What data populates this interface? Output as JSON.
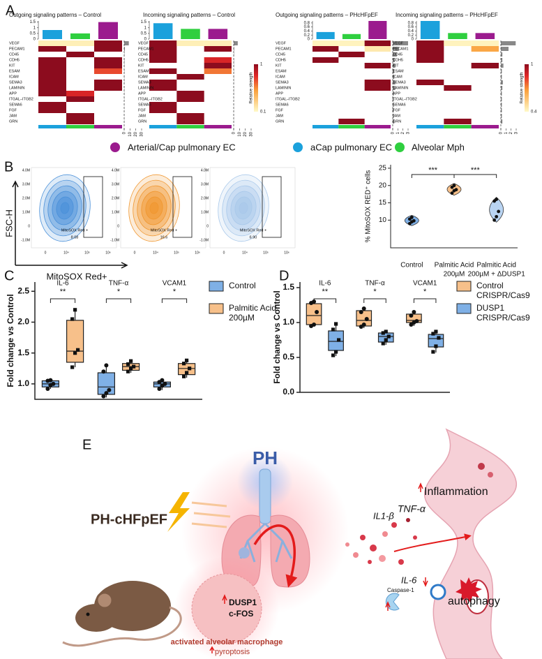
{
  "panel_labels": [
    "A",
    "B",
    "C",
    "D",
    "E"
  ],
  "legend_a": [
    {
      "name": "Arterial/Cap pulmonary EC",
      "color": "#9b1b8e"
    },
    {
      "name": "aCap pulmonary EC",
      "color": "#1ba1dc"
    },
    {
      "name": "Alveolar Mph",
      "color": "#2fcf3f"
    }
  ],
  "chart_data": [
    {
      "type": "heatmap",
      "title": "Outgoing signaling patterns – Control",
      "rows": [
        "VEGF",
        "PECAM1",
        "CD45",
        "CDH5",
        "KIT",
        "ESAM",
        "ICAM",
        "SEMA3",
        "LAMININ",
        "APP",
        "ITGAL–ITGB2",
        "SEMA6",
        "FGF",
        "JAM",
        "GRN"
      ],
      "colors": [
        "#1ba1dc",
        "#2fcf3f",
        "#9b1b8e"
      ],
      "clim": [
        0.1,
        1
      ],
      "matrix": [
        [
          0.15,
          0.15,
          1
        ],
        [
          1,
          null,
          1
        ],
        [
          null,
          1,
          null
        ],
        [
          1,
          null,
          1
        ],
        [
          1,
          null,
          1
        ],
        [
          1,
          null,
          0.7
        ],
        [
          1,
          null,
          null
        ],
        [
          1,
          null,
          1
        ],
        [
          1,
          null,
          1
        ],
        [
          1,
          0.8,
          null
        ],
        [
          null,
          1,
          null
        ],
        [
          1,
          null,
          null
        ],
        [
          1,
          null,
          null
        ],
        [
          null,
          1,
          null
        ],
        [
          null,
          1,
          null
        ]
      ],
      "top_bars": [
        0.8,
        0.5,
        1.5
      ],
      "top_ylim": [
        0,
        1.6
      ],
      "top_yticks": [
        0,
        0.5,
        1,
        1.5
      ],
      "side_bars": [
        8,
        1.2,
        0.5,
        0.6,
        0.5,
        0.5,
        0.3,
        0.4,
        0.4,
        0.3,
        0.3,
        0.2,
        0.2,
        0.2,
        0.2
      ],
      "side_xlim": [
        0,
        30
      ],
      "side_xticks": [
        0,
        10,
        20,
        30
      ]
    },
    {
      "type": "heatmap",
      "title": "Incoming signaling patterns – Control",
      "rows": [
        "VEGF",
        "PECAM1",
        "CD45",
        "CDH5",
        "KIT",
        "ESAM",
        "ICAM",
        "SEMA3",
        "LAMININ",
        "APP",
        "ITGAL–ITGB2",
        "SEMA6",
        "FGF",
        "JAM",
        "GRN"
      ],
      "colors": [
        "#1ba1dc",
        "#2fcf3f",
        "#9b1b8e"
      ],
      "clim": [
        0.1,
        1
      ],
      "matrix": [
        [
          1,
          0.15,
          0.15
        ],
        [
          1,
          null,
          1
        ],
        [
          1,
          null,
          null
        ],
        [
          1,
          null,
          0.8
        ],
        [
          null,
          null,
          1
        ],
        [
          1,
          null,
          0.6
        ],
        [
          null,
          1,
          null
        ],
        [
          1,
          null,
          null
        ],
        [
          1,
          null,
          null
        ],
        [
          null,
          1,
          null
        ],
        [
          null,
          1,
          null
        ],
        [
          1,
          null,
          null
        ],
        [
          1,
          null,
          null
        ],
        [
          null,
          1,
          null
        ],
        [
          null,
          1,
          null
        ]
      ],
      "top_bars": [
        1.4,
        0.9,
        0.9
      ],
      "top_ylim": [
        0,
        1.6
      ],
      "top_yticks": [
        0,
        0.5,
        1,
        1.5
      ],
      "side_bars": [
        7,
        0.8,
        0.6,
        0.5,
        0.4,
        0.4,
        0.3,
        0.3,
        0.3,
        0.3,
        0.2,
        0.2,
        0.2,
        0.2,
        0.2
      ],
      "side_xlim": [
        0,
        30
      ],
      "side_xticks": [
        0,
        10,
        20,
        30
      ],
      "colorbar": {
        "label": "Relative strength",
        "ticks": [
          0.1,
          1
        ]
      }
    },
    {
      "type": "heatmap",
      "title": "Outgoing signaling patterns – PHcHFpEF",
      "rows": [
        "VEGF",
        "PECAM1",
        "CD45",
        "CDH5",
        "KIT",
        "ESAM",
        "ICAM",
        "SEMA3",
        "LAMININ",
        "APP",
        "ITGAL–ITGB2",
        "SEMA6",
        "FGF",
        "JAM",
        "GRN"
      ],
      "colors": [
        "#1ba1dc",
        "#2fcf3f",
        "#9b1b8e"
      ],
      "clim": [
        0.4,
        1
      ],
      "matrix": [
        [
          0.42,
          0.42,
          1
        ],
        [
          1,
          null,
          0.45
        ],
        [
          null,
          1,
          null
        ],
        [
          1,
          null,
          null
        ],
        [
          null,
          null,
          1
        ],
        [
          null,
          null,
          null
        ],
        [
          null,
          null,
          null
        ],
        [
          null,
          null,
          1
        ],
        [
          null,
          null,
          1
        ],
        [
          null,
          null,
          null
        ],
        [
          null,
          null,
          null
        ],
        [
          null,
          null,
          null
        ],
        [
          null,
          null,
          null
        ],
        [
          null,
          null,
          null
        ],
        [
          null,
          1,
          null
        ]
      ],
      "top_bars": [
        0.35,
        0.25,
        0.9
      ],
      "top_ylim": [
        0,
        0.9
      ],
      "top_yticks": [
        0,
        0.2,
        0.4,
        0.6,
        0.8
      ],
      "side_bars": [
        3,
        1.2,
        0.8,
        0.4,
        0.5,
        0.3,
        0.3,
        0.5,
        0.5,
        0.2,
        0.2,
        0.2,
        0.2,
        0.2,
        0.3
      ],
      "side_xlim": [
        0,
        3
      ],
      "side_xticks": [
        0,
        1,
        2,
        3
      ]
    },
    {
      "type": "heatmap",
      "title": "Incoming signaling patterns – PHcHFpEF",
      "rows": [
        "VEGF",
        "PECAM1",
        "CD45",
        "CDH5",
        "KIT",
        "ESAM",
        "ICAM",
        "SEMA3",
        "LAMININ",
        "APP",
        "ITGAL–ITGB2",
        "SEMA6",
        "FGF",
        "JAM",
        "GRN"
      ],
      "colors": [
        "#1ba1dc",
        "#2fcf3f",
        "#9b1b8e"
      ],
      "clim": [
        0.4,
        1
      ],
      "matrix": [
        [
          1,
          0.42,
          0.42
        ],
        [
          1,
          null,
          0.65
        ],
        [
          1,
          null,
          null
        ],
        [
          1,
          null,
          null
        ],
        [
          null,
          null,
          1
        ],
        [
          null,
          null,
          null
        ],
        [
          null,
          null,
          null
        ],
        [
          1,
          null,
          null
        ],
        [
          null,
          1,
          null
        ],
        [
          null,
          null,
          null
        ],
        [
          null,
          null,
          null
        ],
        [
          null,
          null,
          null
        ],
        [
          null,
          null,
          null
        ],
        [
          null,
          null,
          null
        ],
        [
          null,
          1,
          null
        ]
      ],
      "top_bars": [
        0.9,
        0.3,
        0.3
      ],
      "top_ylim": [
        0,
        0.9
      ],
      "top_yticks": [
        0,
        0.2,
        0.4,
        0.6,
        0.8
      ],
      "side_bars": [
        2.9,
        1.5,
        0.3,
        0.3,
        0.5,
        0.2,
        0.2,
        0.4,
        0.3,
        0.2,
        0.2,
        0.2,
        0.2,
        0.2,
        0.3
      ],
      "side_xlim": [
        0,
        3
      ],
      "side_xticks": [
        0,
        1,
        2,
        3
      ],
      "colorbar": {
        "label": "Relative strength",
        "ticks": [
          0.4,
          1
        ]
      }
    },
    {
      "type": "violin",
      "ylabel": "% MitoSOX RED⁺ cells",
      "categories": [
        [
          "Control"
        ],
        [
          "Palmitic Acid",
          "200µM"
        ],
        [
          "Palmitic Acid",
          "200µM + ΔDUSP1"
        ]
      ],
      "values": [
        [
          9.0,
          9.5,
          9.8,
          10.3,
          10.8
        ],
        [
          17.8,
          18.5,
          18.8,
          19.5,
          20.0
        ],
        [
          10.0,
          11.0,
          12.5,
          15.5,
          16.0
        ]
      ],
      "colors": [
        "#7fb0e6",
        "#f7c08a",
        "#b9d4f2"
      ],
      "ylim": [
        2,
        26
      ],
      "yticks": [
        10,
        15,
        20,
        25
      ],
      "significance": [
        "***",
        "***"
      ]
    },
    {
      "type": "box",
      "ylabel": "Fold change vs Control",
      "categories": [
        "IL-6",
        "TNF-α",
        "VCAM1"
      ],
      "significance": [
        "**",
        "*",
        "*"
      ],
      "ylim": [
        0.75,
        2.65
      ],
      "yticks": [
        {
          "value": 1,
          "label": "1.0"
        },
        1.5,
        {
          "value": 2,
          "label": "2.0"
        },
        2.5
      ],
      "series": [
        {
          "name": [
            "Control"
          ],
          "color": "#7fb0e6",
          "boxes": [
            {
              "min": 0.92,
              "q1": 0.95,
              "median": 1.0,
              "q3": 1.05,
              "max": 1.07,
              "points": [
                0.92,
                0.98,
                1.0,
                1.05,
                1.06
              ]
            },
            {
              "min": 0.78,
              "q1": 0.83,
              "median": 0.95,
              "q3": 1.18,
              "max": 1.3,
              "points": [
                0.8,
                0.85,
                0.9,
                1.2,
                1.3
              ]
            },
            {
              "min": 0.9,
              "q1": 0.95,
              "median": 1.0,
              "q3": 1.03,
              "max": 1.07,
              "points": [
                0.92,
                0.97,
                1.0,
                1.03,
                1.06
              ]
            }
          ]
        },
        {
          "name": [
            "Palmitic Acid",
            "200µM"
          ],
          "color": "#f7c08a",
          "boxes": [
            {
              "min": 1.27,
              "q1": 1.35,
              "median": 1.53,
              "q3": 2.03,
              "max": 2.2,
              "points": [
                1.27,
                1.5,
                1.55,
                2.05,
                2.2
              ]
            },
            {
              "min": 1.18,
              "q1": 1.22,
              "median": 1.28,
              "q3": 1.33,
              "max": 1.38,
              "points": [
                1.2,
                1.25,
                1.28,
                1.32,
                1.37
              ]
            },
            {
              "min": 1.1,
              "q1": 1.15,
              "median": 1.25,
              "q3": 1.33,
              "max": 1.4,
              "points": [
                1.12,
                1.18,
                1.25,
                1.33,
                1.38
              ]
            }
          ]
        }
      ]
    },
    {
      "type": "box",
      "ylabel": "Fold change vs Control",
      "categories": [
        "IL-6",
        "TNF-α",
        "VCAM1"
      ],
      "significance": [
        "**",
        "*",
        "*"
      ],
      "ylim": [
        0,
        1.58
      ],
      "yticks": [
        {
          "value": 0,
          "label": "0.0"
        },
        0.5,
        {
          "value": 1,
          "label": "1.0"
        },
        1.5
      ],
      "series": [
        {
          "name": [
            "Control",
            "CRISPR/Cas9"
          ],
          "color": "#f7c08a",
          "boxes": [
            {
              "min": 0.95,
              "q1": 0.97,
              "median": 1.1,
              "q3": 1.27,
              "max": 1.32,
              "points": [
                0.95,
                0.97,
                1.15,
                1.28,
                1.3
              ]
            },
            {
              "min": 0.92,
              "q1": 0.95,
              "median": 1.03,
              "q3": 1.17,
              "max": 1.22,
              "points": [
                0.94,
                0.97,
                1.05,
                1.15,
                1.2
              ]
            },
            {
              "min": 0.95,
              "q1": 1.0,
              "median": 1.03,
              "q3": 1.12,
              "max": 1.17,
              "points": [
                0.97,
                1.0,
                1.02,
                1.1,
                1.15
              ]
            }
          ]
        },
        {
          "name": [
            "DUSP1",
            "CRISPR/Cas9"
          ],
          "color": "#7fb0e6",
          "boxes": [
            {
              "min": 0.52,
              "q1": 0.6,
              "median": 0.73,
              "q3": 0.88,
              "max": 1.0,
              "points": [
                0.53,
                0.58,
                0.75,
                0.9,
                0.98
              ]
            },
            {
              "min": 0.68,
              "q1": 0.72,
              "median": 0.8,
              "q3": 0.85,
              "max": 0.88,
              "points": [
                0.7,
                0.75,
                0.8,
                0.85,
                0.87
              ]
            },
            {
              "min": 0.57,
              "q1": 0.65,
              "median": 0.77,
              "q3": 0.83,
              "max": 0.88,
              "points": [
                0.58,
                0.66,
                0.78,
                0.84,
                0.87
              ]
            }
          ]
        }
      ]
    }
  ],
  "flow": {
    "y_label": "FSC-H",
    "x_label": "MitoSOX Red+",
    "yticks": [
      "4.0M",
      "3.0M",
      "2.0M",
      "1.0M",
      "0",
      "-1.0M"
    ],
    "xticks": [
      "0",
      "10⁴",
      "10⁵",
      "10⁶"
    ],
    "plots": [
      {
        "gate_label": "MitoSOX Red +",
        "gate_value": "8.08",
        "color": "#4a90d9"
      },
      {
        "gate_label": "MitoSOX Red +",
        "gate_value": "16.6",
        "color": "#f0962e"
      },
      {
        "gate_label": "MitoSOX Red +",
        "gate_value": "6.90",
        "color": "#a8c8ea"
      }
    ]
  },
  "diagram": {
    "ph": "PH",
    "model": "PH-cHFpEF",
    "inflammation": "Inflammation",
    "tnf": "TNF-α",
    "il1": "IL1-β",
    "il6": "IL-6",
    "caspase": "Caspase-1",
    "autophagy": "autophagy",
    "genes": [
      "DUSP1",
      "c-FOS"
    ],
    "cell_label": "activated alveolar macrophage",
    "cell_fate": "pyroptosis"
  }
}
